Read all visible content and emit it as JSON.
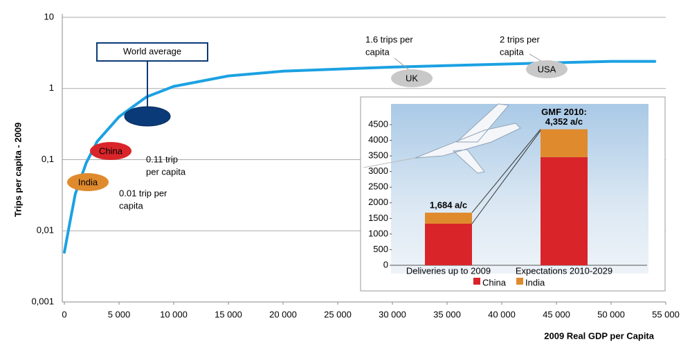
{
  "chart_data": [
    {
      "type": "line",
      "log_y": true,
      "color": "#1ba1e2",
      "grid": true,
      "y_label": "Trips per capita - 2009",
      "x_label": "2009 Real GDP per Capita",
      "x": [
        0,
        500,
        1000,
        2000,
        3000,
        5000,
        7500,
        10000,
        15000,
        20000,
        30000,
        40000,
        50000,
        54000
      ],
      "values": [
        0.005,
        0.013,
        0.033,
        0.09,
        0.18,
        0.4,
        0.76,
        1.07,
        1.5,
        1.75,
        2.0,
        2.2,
        2.4,
        2.4
      ],
      "xlim": [
        0,
        55000
      ],
      "xticks": [
        0,
        {
          "value": 5000,
          "label": "5 000"
        },
        {
          "value": 10000,
          "label": "10 000"
        },
        {
          "value": 15000,
          "label": "15 000"
        },
        {
          "value": 20000,
          "label": "20 000"
        },
        {
          "value": 25000,
          "label": "25 000"
        },
        {
          "value": 30000,
          "label": "30 000"
        },
        {
          "value": 35000,
          "label": "35 000"
        },
        {
          "value": 40000,
          "label": "40 000"
        },
        {
          "value": 45000,
          "label": "45 000"
        },
        {
          "value": 50000,
          "label": "50 000"
        },
        {
          "value": 55000,
          "label": "55 000"
        }
      ],
      "ylim": [
        0.001,
        10
      ],
      "yticks": [
        {
          "value": 0.001,
          "label": "0,001"
        },
        {
          "value": 0.01,
          "label": "0,01"
        },
        {
          "value": 0.1,
          "label": "0,1"
        },
        1,
        10
      ],
      "annotations": [
        {
          "label": "World average"
        },
        {
          "label": "China",
          "text": [
            "0.11 trip",
            "per capita"
          ]
        },
        {
          "label": "India",
          "text": [
            "0.01 trip per",
            "capita"
          ]
        },
        {
          "label": "UK",
          "text": [
            "1.6 trips per",
            "capita"
          ]
        },
        {
          "label": "USA",
          "text": [
            "2 trips per",
            "capita"
          ]
        }
      ]
    },
    {
      "type": "bar",
      "stacked": true,
      "categories": [
        "Deliveries up to 2009",
        "Expectations 2010-2029"
      ],
      "series": [
        {
          "name": "China",
          "color": "#d9252a",
          "values": [
            1330,
            3460
          ]
        },
        {
          "name": "India",
          "color": "#e08a2e",
          "values": [
            354,
            892
          ]
        }
      ],
      "total_labels": [
        [
          "1,684 a/c"
        ],
        [
          "GMF 2010:",
          "4,352 a/c"
        ]
      ],
      "ylim": [
        0,
        4500
      ],
      "yticks": [
        0,
        500,
        1000,
        1500,
        2000,
        2500,
        3000,
        3500,
        4000,
        4500
      ]
    }
  ]
}
